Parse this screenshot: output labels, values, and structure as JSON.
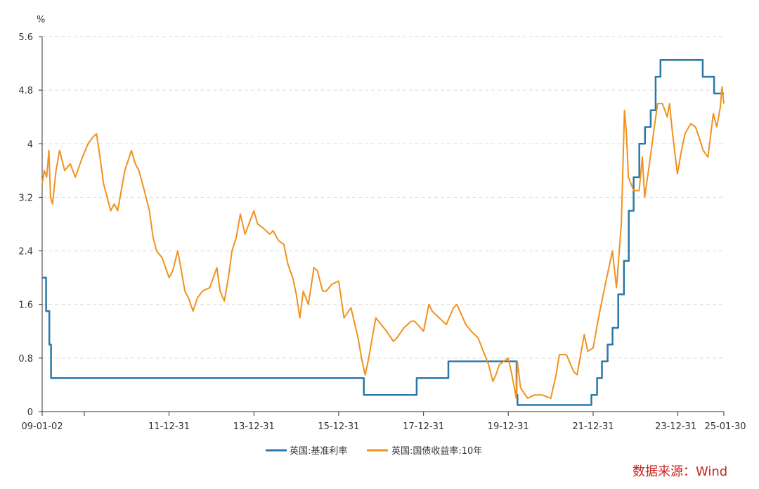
{
  "chart_data": {
    "type": "line",
    "unit_label": "%",
    "x_tick_labels": [
      "09-01-02",
      "11-12-31",
      "13-12-31",
      "15-12-31",
      "17-12-31",
      "19-12-31",
      "21-12-31",
      "23-12-31",
      "25-01-30"
    ],
    "x_range": [
      "2009-01-02",
      "2025-01-30"
    ],
    "ylim": [
      0,
      5.6
    ],
    "y_ticks": [
      "0",
      "0.8",
      "1.6",
      "2.4",
      "3.2",
      "4",
      "4.8",
      "5.6"
    ],
    "grid": "horizontal dashed",
    "legend_position": "bottom-center",
    "series": [
      {
        "name": "英国:基准利率",
        "color": "#2a78a8",
        "step": true,
        "points": [
          [
            "2009-01-02",
            2.0
          ],
          [
            "2009-02-05",
            1.5
          ],
          [
            "2009-03-05",
            1.0
          ],
          [
            "2009-03-19",
            0.5
          ],
          [
            "2016-08-04",
            0.25
          ],
          [
            "2017-11-02",
            0.5
          ],
          [
            "2018-08-02",
            0.75
          ],
          [
            "2020-03-11",
            0.25
          ],
          [
            "2020-03-19",
            0.1
          ],
          [
            "2021-12-16",
            0.25
          ],
          [
            "2022-02-03",
            0.5
          ],
          [
            "2022-03-17",
            0.75
          ],
          [
            "2022-05-05",
            1.0
          ],
          [
            "2022-06-16",
            1.25
          ],
          [
            "2022-08-04",
            1.75
          ],
          [
            "2022-09-22",
            2.25
          ],
          [
            "2022-11-03",
            3.0
          ],
          [
            "2022-12-15",
            3.5
          ],
          [
            "2023-02-02",
            4.0
          ],
          [
            "2023-03-23",
            4.25
          ],
          [
            "2023-05-11",
            4.5
          ],
          [
            "2023-06-22",
            5.0
          ],
          [
            "2023-08-03",
            5.25
          ],
          [
            "2024-08-01",
            5.0
          ],
          [
            "2024-11-07",
            4.75
          ],
          [
            "2025-01-30",
            4.75
          ]
        ]
      },
      {
        "name": "英国:国债收益率:10年",
        "color": "#f0921e",
        "step": false,
        "points": [
          [
            "2009-01-02",
            3.4
          ],
          [
            "2009-01-20",
            3.6
          ],
          [
            "2009-02-10",
            3.5
          ],
          [
            "2009-03-01",
            3.9
          ],
          [
            "2009-03-15",
            3.2
          ],
          [
            "2009-04-01",
            3.1
          ],
          [
            "2009-05-01",
            3.6
          ],
          [
            "2009-06-01",
            3.9
          ],
          [
            "2009-07-15",
            3.6
          ],
          [
            "2009-09-01",
            3.7
          ],
          [
            "2009-10-15",
            3.5
          ],
          [
            "2009-12-15",
            3.8
          ],
          [
            "2010-02-01",
            4.0
          ],
          [
            "2010-03-15",
            4.1
          ],
          [
            "2010-04-15",
            4.15
          ],
          [
            "2010-05-15",
            3.8
          ],
          [
            "2010-06-15",
            3.4
          ],
          [
            "2010-08-15",
            3.0
          ],
          [
            "2010-09-15",
            3.1
          ],
          [
            "2010-10-15",
            3.0
          ],
          [
            "2010-12-15",
            3.6
          ],
          [
            "2011-02-10",
            3.9
          ],
          [
            "2011-03-15",
            3.7
          ],
          [
            "2011-04-15",
            3.6
          ],
          [
            "2011-06-01",
            3.3
          ],
          [
            "2011-07-15",
            3.0
          ],
          [
            "2011-08-15",
            2.6
          ],
          [
            "2011-09-15",
            2.4
          ],
          [
            "2011-11-01",
            2.3
          ],
          [
            "2011-12-31",
            2.0
          ],
          [
            "2012-01-31",
            2.1
          ],
          [
            "2012-03-15",
            2.4
          ],
          [
            "2012-04-15",
            2.1
          ],
          [
            "2012-05-15",
            1.8
          ],
          [
            "2012-06-15",
            1.7
          ],
          [
            "2012-07-25",
            1.5
          ],
          [
            "2012-09-01",
            1.7
          ],
          [
            "2012-10-15",
            1.8
          ],
          [
            "2012-12-15",
            1.85
          ],
          [
            "2013-02-15",
            2.15
          ],
          [
            "2013-03-15",
            1.8
          ],
          [
            "2013-04-20",
            1.65
          ],
          [
            "2013-05-25",
            2.0
          ],
          [
            "2013-06-25",
            2.4
          ],
          [
            "2013-08-01",
            2.6
          ],
          [
            "2013-09-05",
            2.95
          ],
          [
            "2013-10-15",
            2.65
          ],
          [
            "2013-12-31",
            3.0
          ],
          [
            "2014-02-01",
            2.8
          ],
          [
            "2014-03-15",
            2.75
          ],
          [
            "2014-05-15",
            2.65
          ],
          [
            "2014-06-15",
            2.7
          ],
          [
            "2014-08-01",
            2.55
          ],
          [
            "2014-09-15",
            2.5
          ],
          [
            "2014-10-20",
            2.2
          ],
          [
            "2014-12-01",
            2.0
          ],
          [
            "2014-12-31",
            1.75
          ],
          [
            "2015-01-31",
            1.4
          ],
          [
            "2015-03-01",
            1.8
          ],
          [
            "2015-04-15",
            1.6
          ],
          [
            "2015-06-01",
            2.15
          ],
          [
            "2015-07-01",
            2.1
          ],
          [
            "2015-08-15",
            1.8
          ],
          [
            "2015-09-15",
            1.8
          ],
          [
            "2015-11-01",
            1.9
          ],
          [
            "2015-12-31",
            1.95
          ],
          [
            "2016-02-15",
            1.4
          ],
          [
            "2016-04-15",
            1.55
          ],
          [
            "2016-06-15",
            1.1
          ],
          [
            "2016-07-15",
            0.8
          ],
          [
            "2016-08-15",
            0.55
          ],
          [
            "2016-09-15",
            0.8
          ],
          [
            "2016-10-15",
            1.1
          ],
          [
            "2016-11-15",
            1.4
          ],
          [
            "2016-12-31",
            1.3
          ],
          [
            "2017-02-15",
            1.2
          ],
          [
            "2017-04-15",
            1.05
          ],
          [
            "2017-05-15",
            1.1
          ],
          [
            "2017-07-15",
            1.25
          ],
          [
            "2017-09-15",
            1.35
          ],
          [
            "2017-10-15",
            1.35
          ],
          [
            "2017-12-31",
            1.2
          ],
          [
            "2018-02-15",
            1.6
          ],
          [
            "2018-03-15",
            1.5
          ],
          [
            "2018-05-15",
            1.4
          ],
          [
            "2018-07-15",
            1.3
          ],
          [
            "2018-09-15",
            1.55
          ],
          [
            "2018-10-15",
            1.6
          ],
          [
            "2018-12-31",
            1.3
          ],
          [
            "2019-02-15",
            1.2
          ],
          [
            "2019-04-15",
            1.1
          ],
          [
            "2019-05-30",
            0.9
          ],
          [
            "2019-07-15",
            0.7
          ],
          [
            "2019-08-20",
            0.45
          ],
          [
            "2019-09-15",
            0.55
          ],
          [
            "2019-10-15",
            0.7
          ],
          [
            "2019-12-31",
            0.8
          ],
          [
            "2020-01-31",
            0.55
          ],
          [
            "2020-03-09",
            0.2
          ],
          [
            "2020-03-18",
            0.75
          ],
          [
            "2020-04-15",
            0.35
          ],
          [
            "2020-06-15",
            0.2
          ],
          [
            "2020-08-15",
            0.25
          ],
          [
            "2020-10-15",
            0.25
          ],
          [
            "2020-12-31",
            0.2
          ],
          [
            "2021-02-15",
            0.55
          ],
          [
            "2021-03-15",
            0.85
          ],
          [
            "2021-05-15",
            0.85
          ],
          [
            "2021-07-15",
            0.6
          ],
          [
            "2021-08-15",
            0.55
          ],
          [
            "2021-10-15",
            1.15
          ],
          [
            "2021-11-15",
            0.9
          ],
          [
            "2021-12-31",
            0.95
          ],
          [
            "2022-02-15",
            1.4
          ],
          [
            "2022-04-15",
            1.9
          ],
          [
            "2022-06-15",
            2.4
          ],
          [
            "2022-07-20",
            1.85
          ],
          [
            "2022-08-31",
            2.8
          ],
          [
            "2022-09-27",
            4.5
          ],
          [
            "2022-10-12",
            4.2
          ],
          [
            "2022-10-31",
            3.5
          ],
          [
            "2022-12-15",
            3.3
          ],
          [
            "2023-01-31",
            3.3
          ],
          [
            "2023-02-28",
            3.8
          ],
          [
            "2023-03-20",
            3.2
          ],
          [
            "2023-04-30",
            3.7
          ],
          [
            "2023-06-15",
            4.3
          ],
          [
            "2023-07-10",
            4.6
          ],
          [
            "2023-08-20",
            4.6
          ],
          [
            "2023-09-30",
            4.4
          ],
          [
            "2023-10-20",
            4.6
          ],
          [
            "2023-11-15",
            4.15
          ],
          [
            "2023-12-27",
            3.55
          ],
          [
            "2024-01-31",
            3.9
          ],
          [
            "2024-03-01",
            4.15
          ],
          [
            "2024-04-20",
            4.3
          ],
          [
            "2024-05-31",
            4.25
          ],
          [
            "2024-06-30",
            4.1
          ],
          [
            "2024-08-05",
            3.9
          ],
          [
            "2024-09-15",
            3.8
          ],
          [
            "2024-10-31",
            4.45
          ],
          [
            "2024-11-30",
            4.25
          ],
          [
            "2024-12-31",
            4.55
          ],
          [
            "2025-01-14",
            4.85
          ],
          [
            "2025-01-30",
            4.6
          ]
        ]
      }
    ]
  },
  "source_text": "数据来源：Wind"
}
